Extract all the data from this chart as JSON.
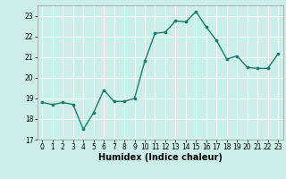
{
  "x": [
    0,
    1,
    2,
    3,
    4,
    5,
    6,
    7,
    8,
    9,
    10,
    11,
    12,
    13,
    14,
    15,
    16,
    17,
    18,
    19,
    20,
    21,
    22,
    23
  ],
  "y": [
    18.8,
    18.7,
    18.8,
    18.7,
    17.5,
    18.3,
    19.4,
    18.85,
    18.85,
    19.0,
    20.8,
    22.15,
    22.2,
    22.75,
    22.7,
    23.2,
    22.45,
    21.8,
    20.9,
    21.05,
    20.5,
    20.45,
    20.45,
    21.15
  ],
  "line_color": "#1a7a6e",
  "marker_color": "#1a7a6e",
  "bg_color": "#cceee8",
  "grid_color": "#ffffff",
  "xlabel": "Humidex (Indice chaleur)",
  "ylim": [
    17,
    23.5
  ],
  "xlim": [
    -0.5,
    23.5
  ],
  "yticks": [
    17,
    18,
    19,
    20,
    21,
    22,
    23
  ],
  "xticks": [
    0,
    1,
    2,
    3,
    4,
    5,
    6,
    7,
    8,
    9,
    10,
    11,
    12,
    13,
    14,
    15,
    16,
    17,
    18,
    19,
    20,
    21,
    22,
    23
  ],
  "tick_fontsize": 5.5,
  "xlabel_fontsize": 7.0,
  "linewidth": 1.0,
  "markersize": 2.2
}
